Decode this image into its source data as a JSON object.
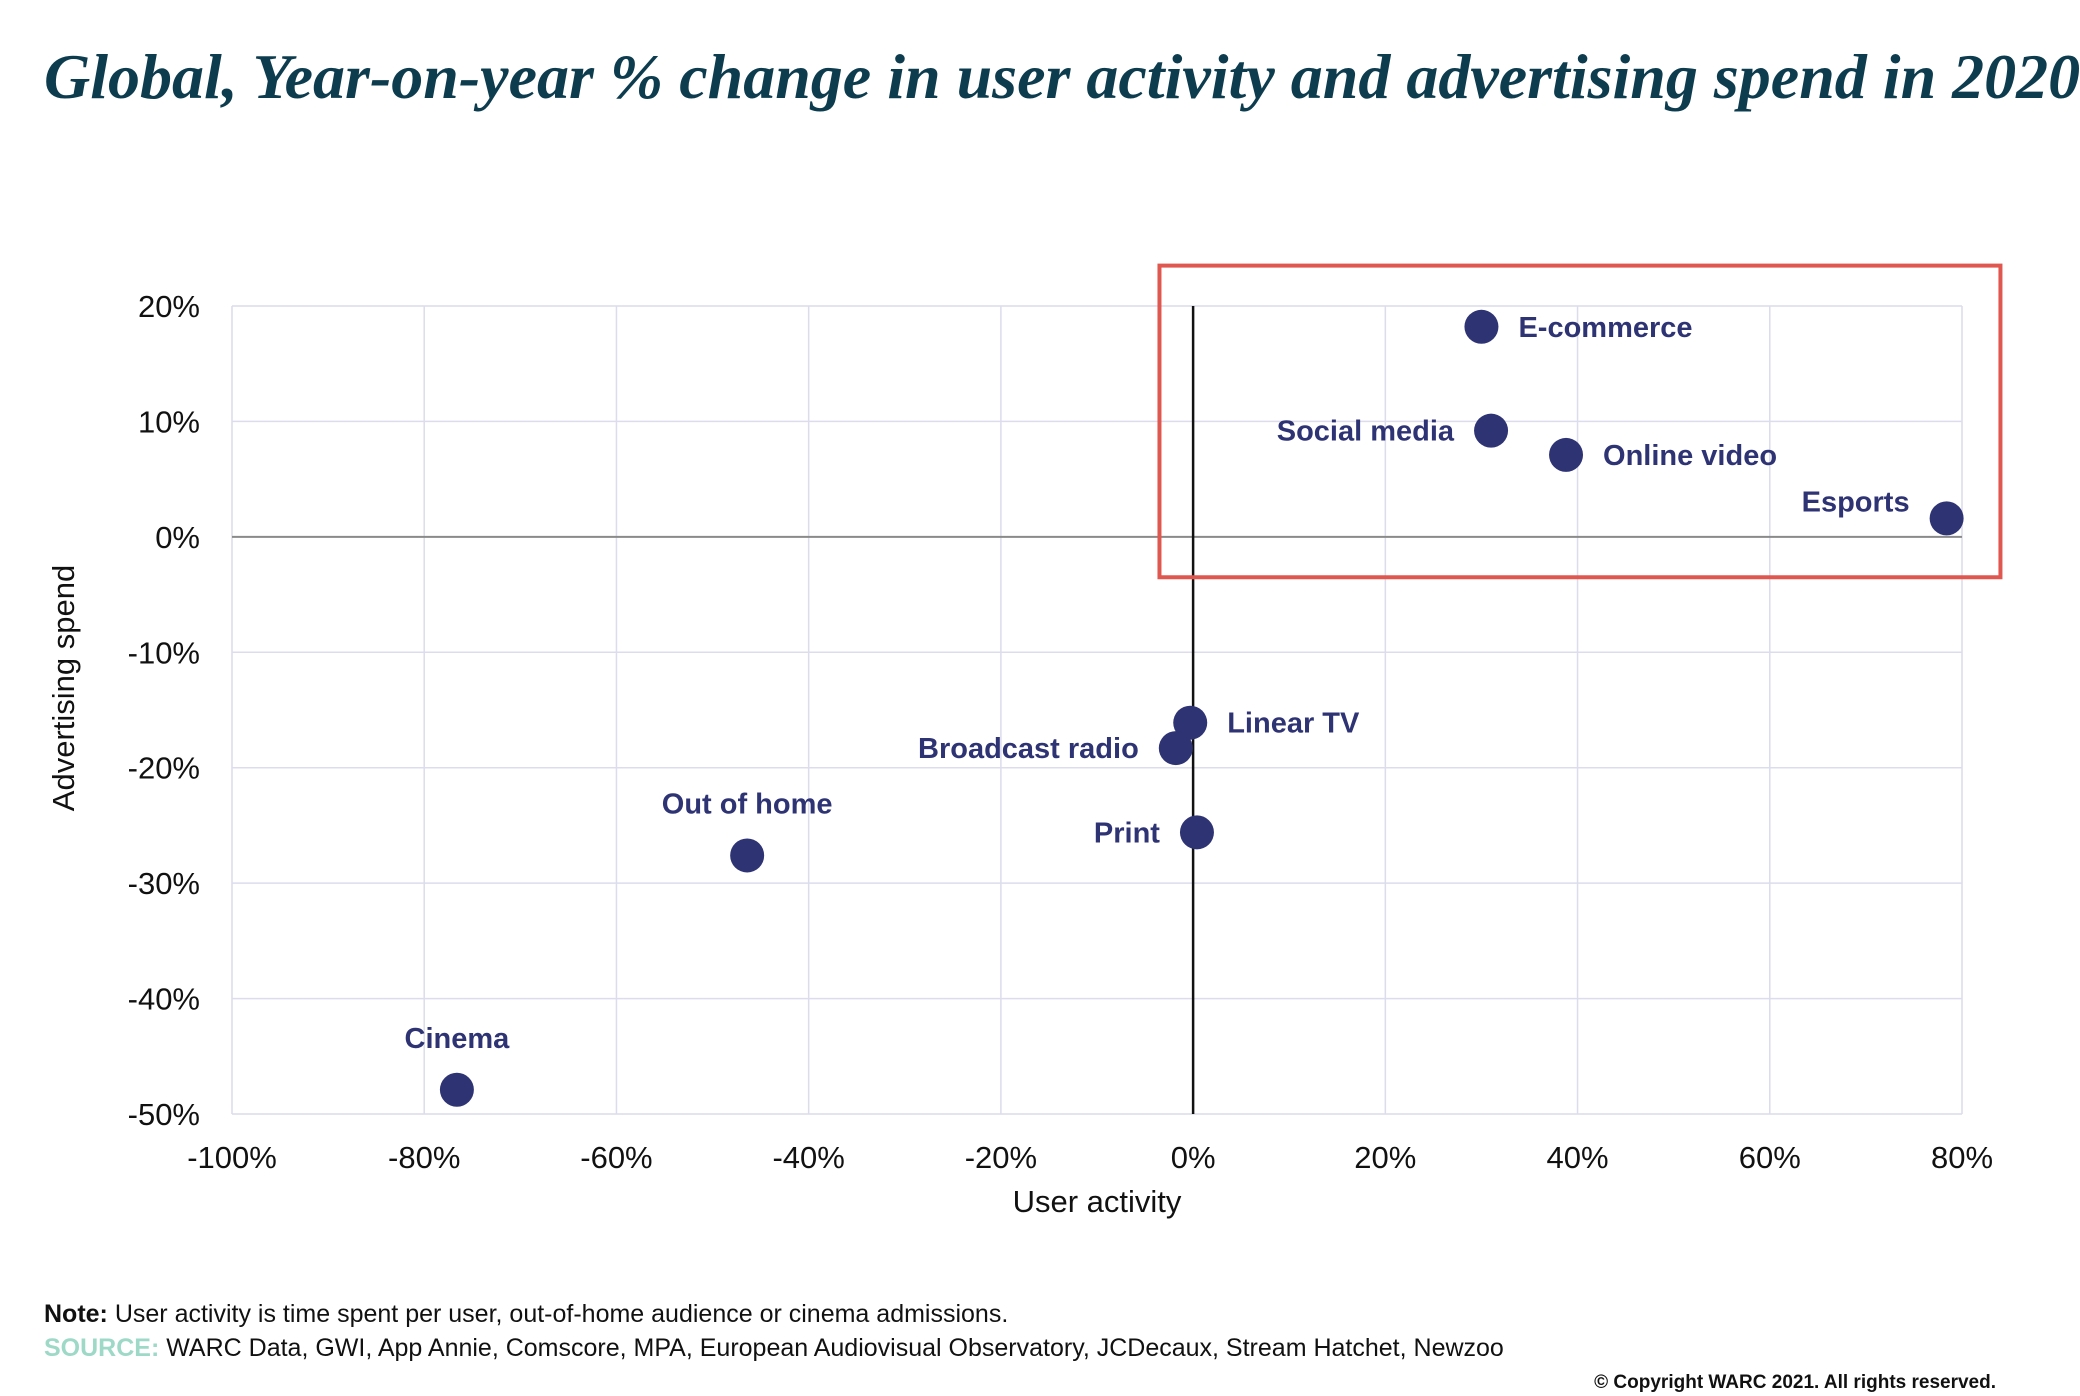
{
  "title": "Global, Year-on-year % change in user activity and advertising spend in 2020",
  "chart_data": {
    "type": "scatter",
    "xlabel": "User activity",
    "ylabel": "Advertising spend",
    "xlim": [
      -100,
      80
    ],
    "ylim": [
      -50,
      20
    ],
    "x_ticks": [
      -100,
      -80,
      -60,
      -40,
      -20,
      0,
      20,
      40,
      60,
      80
    ],
    "y_ticks": [
      20,
      10,
      0,
      -10,
      -20,
      -30,
      -40,
      -50
    ],
    "x_tick_labels": [
      "-100%",
      "-80%",
      "-60%",
      "-40%",
      "-20%",
      "0%",
      "20%",
      "40%",
      "60%",
      "80%"
    ],
    "y_tick_labels": [
      "20%",
      "10%",
      "0%",
      "-10%",
      "-20%",
      "-30%",
      "-40%",
      "-50%"
    ],
    "grid": true,
    "point_color": "#2e3374",
    "highlight_color": "#e0574f",
    "highlight_box": {
      "x_range": [
        -3.5,
        84
      ],
      "y_range": [
        -3.5,
        23.5
      ]
    },
    "points": [
      {
        "label": "E-commerce",
        "x": 30,
        "y": 18.2,
        "label_pos": "right"
      },
      {
        "label": "Social media",
        "x": 31,
        "y": 9.2,
        "label_pos": "left"
      },
      {
        "label": "Online video",
        "x": 38.8,
        "y": 7.1,
        "label_pos": "right"
      },
      {
        "label": "Esports",
        "x": 78.4,
        "y": 1.6,
        "label_pos": "upper-left"
      },
      {
        "label": "Linear TV",
        "x": -0.3,
        "y": -16.1,
        "label_pos": "right"
      },
      {
        "label": "Broadcast radio",
        "x": -1.8,
        "y": -18.3,
        "label_pos": "left"
      },
      {
        "label": "Print",
        "x": 0.4,
        "y": -25.6,
        "label_pos": "left"
      },
      {
        "label": "Out of home",
        "x": -46.4,
        "y": -27.6,
        "label_pos": "above"
      },
      {
        "label": "Cinema",
        "x": -76.6,
        "y": -47.9,
        "label_pos": "above"
      }
    ]
  },
  "footer": {
    "note_label": "Note:",
    "note_text": " User activity is time spent per user, out-of-home audience or cinema admissions.",
    "source_label": "SOURCE:",
    "source_text": " WARC Data, GWI, App Annie, Comscore, MPA, European Audiovisual Observatory, JCDecaux, Stream Hatchet, Newzoo",
    "copyright": "© Copyright WARC 2021. All rights reserved."
  }
}
